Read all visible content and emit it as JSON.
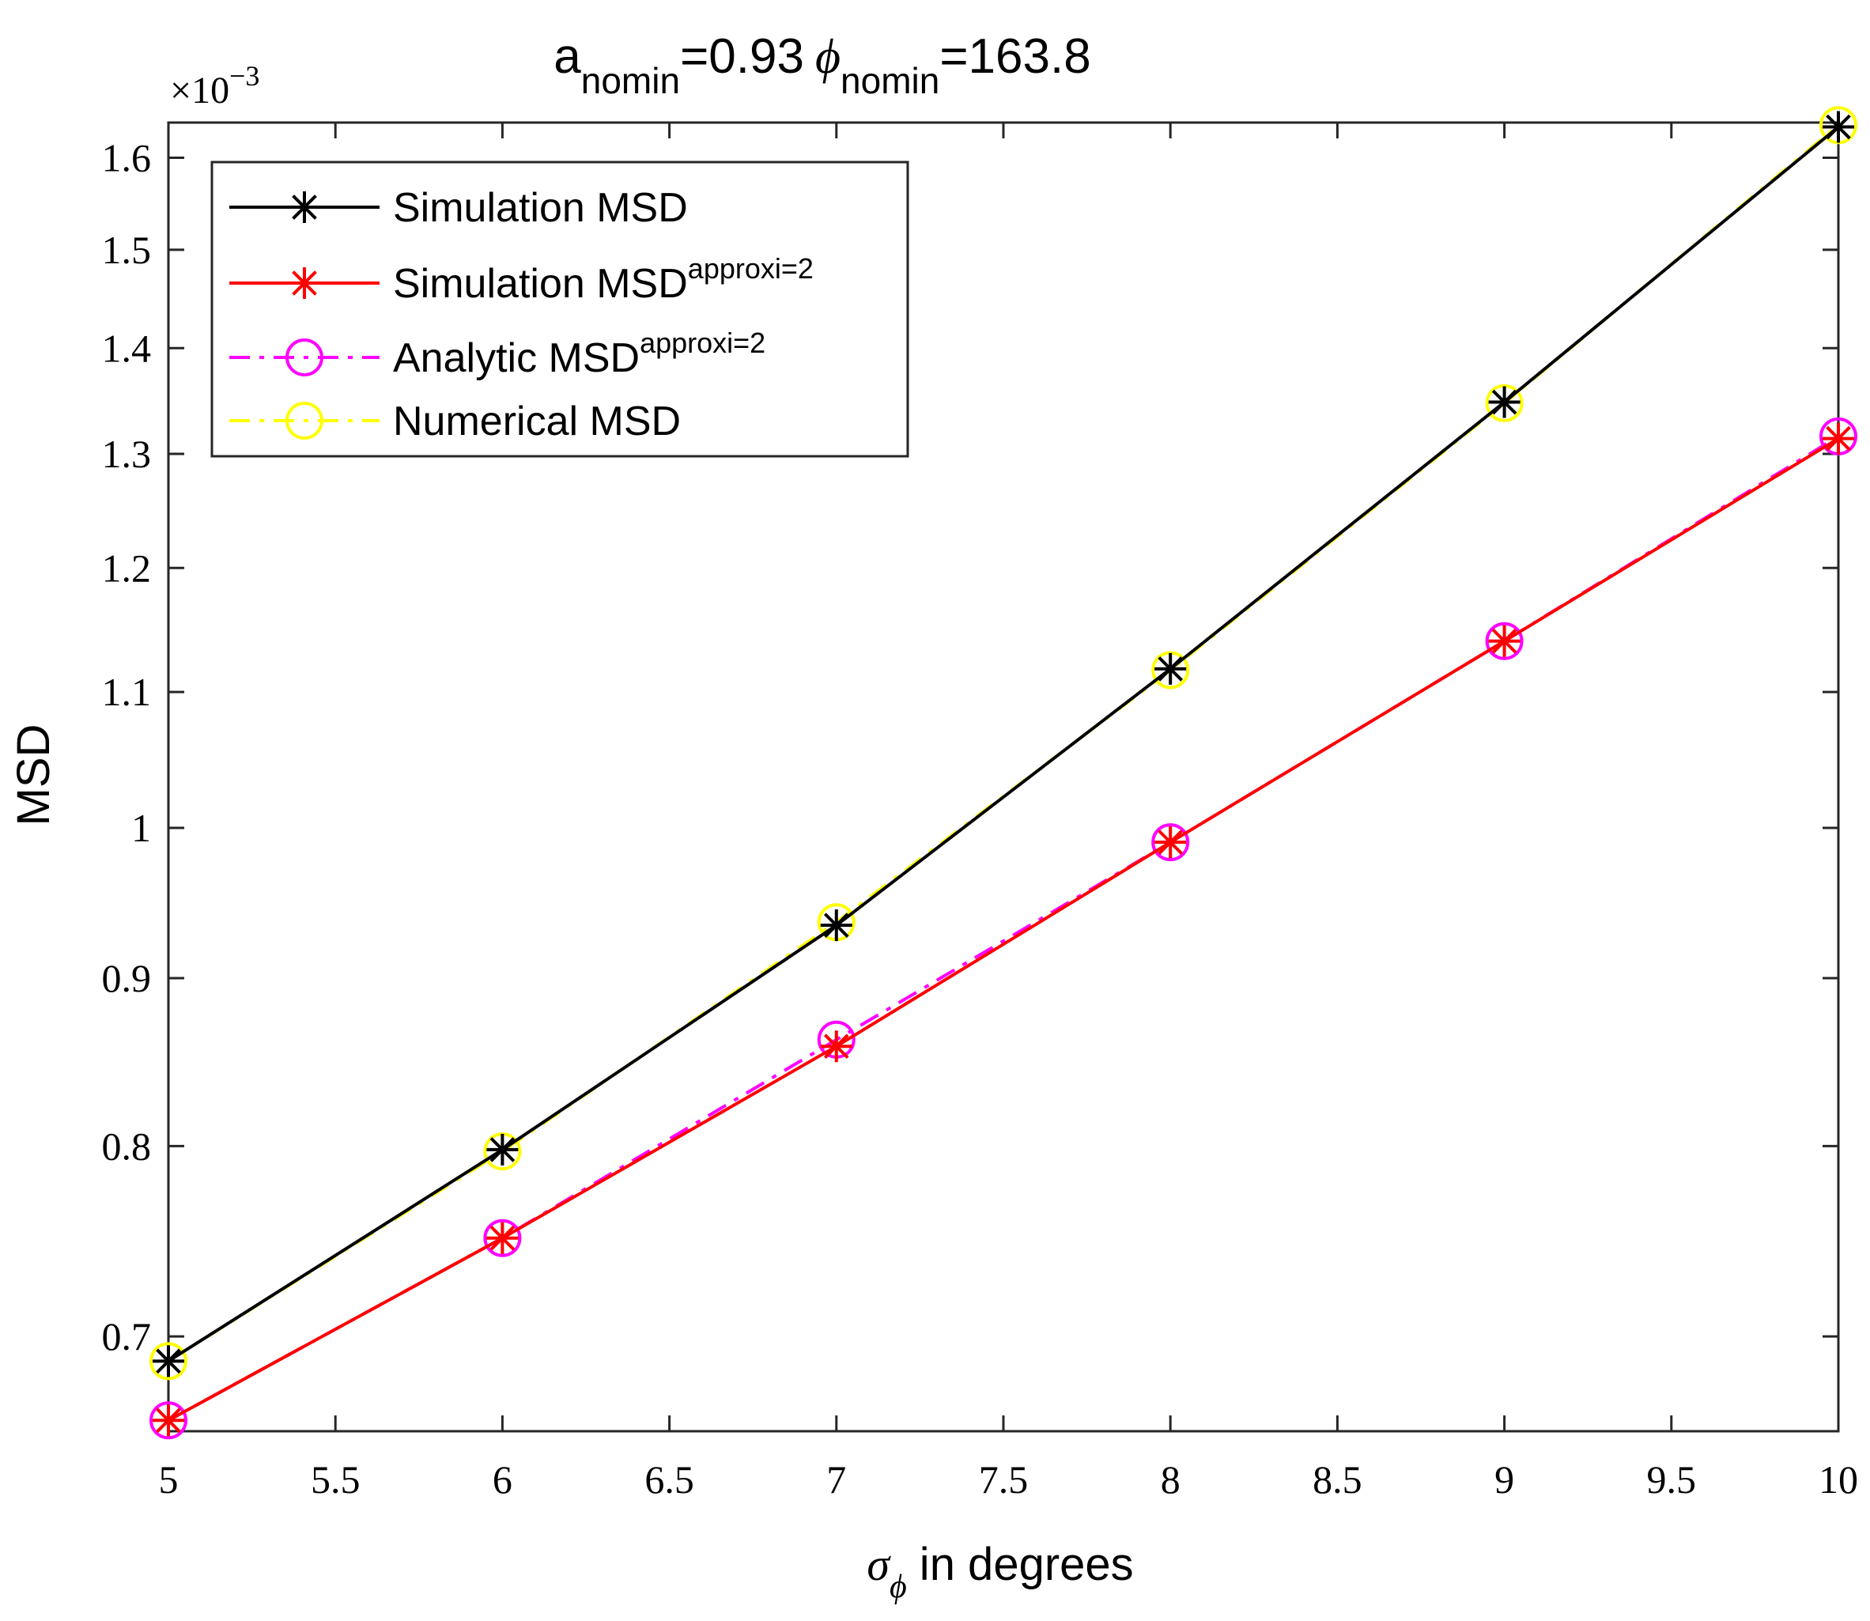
{
  "chart_data": {
    "type": "line",
    "title": {
      "a_base": "a",
      "a_sub": "nomin",
      "a_value": "=0.93",
      "phi_symbol": "ϕ",
      "phi_sub": "nomin",
      "phi_value": "=163.8"
    },
    "xlabel": {
      "symbol": "σ",
      "sub": "ϕ",
      "text": " in degrees"
    },
    "ylabel": "MSD",
    "y_exponent": {
      "prefix": "×10",
      "power": "−3"
    },
    "y_scale": "log",
    "xlim": [
      5,
      10
    ],
    "ylim": [
      0.655,
      1.64
    ],
    "x_ticks": [
      5,
      5.5,
      6,
      6.5,
      7,
      7.5,
      8,
      8.5,
      9,
      9.5,
      10
    ],
    "x_tick_labels": [
      "5",
      "5.5",
      "6",
      "6.5",
      "7",
      "7.5",
      "8",
      "8.5",
      "9",
      "9.5",
      "10"
    ],
    "y_ticks": [
      0.7,
      0.8,
      0.9,
      1.0,
      1.1,
      1.2,
      1.3,
      1.4,
      1.5,
      1.6
    ],
    "y_tick_labels": [
      "0.7",
      "0.8",
      "0.9",
      "1",
      "1.1",
      "1.2",
      "1.3",
      "1.4",
      "1.5",
      "1.6"
    ],
    "grid": false,
    "legend_position": "top-left",
    "x": [
      5,
      6,
      7,
      8,
      9,
      10
    ],
    "series": [
      {
        "name": "Simulation MSD",
        "sup": "",
        "color": "#000000",
        "marker": "asterisk",
        "line": "solid",
        "values": [
          0.688,
          0.798,
          0.934,
          1.118,
          1.348,
          1.635
        ]
      },
      {
        "name": "Simulation MSD",
        "sup": "approxi=2",
        "color": "#ff0000",
        "marker": "asterisk",
        "line": "solid",
        "values": [
          0.66,
          0.75,
          0.858,
          0.99,
          1.14,
          1.314
        ]
      },
      {
        "name": "Analytic MSD",
        "sup": "approxi=2",
        "color": "#ff00ff",
        "marker": "circle",
        "line": "dashdot",
        "values": [
          0.66,
          0.75,
          0.862,
          0.99,
          1.14,
          1.316
        ]
      },
      {
        "name": "Numerical MSD",
        "sup": "",
        "color": "#ffff00",
        "marker": "circle",
        "line": "dashdot",
        "values": [
          0.688,
          0.797,
          0.936,
          1.117,
          1.347,
          1.637
        ]
      }
    ]
  }
}
